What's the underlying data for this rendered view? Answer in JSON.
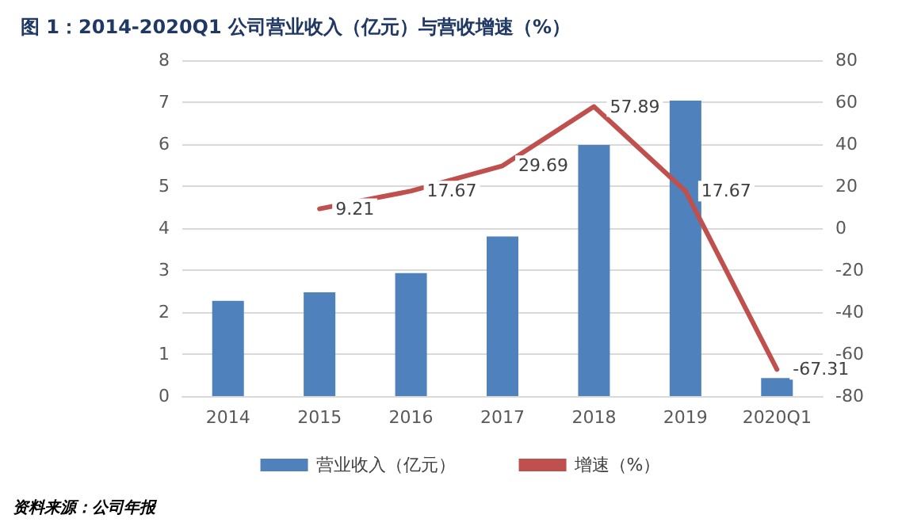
{
  "chart_data": {
    "type": "bar",
    "title": "图 1：2014-2020Q1 公司营业收入（亿元）与营收增速（%）",
    "categories": [
      "2014",
      "2015",
      "2016",
      "2017",
      "2018",
      "2019",
      "2020Q1"
    ],
    "series": [
      {
        "name": "营业收入（亿元）",
        "color": "#4f81bd",
        "values": [
          2.27,
          2.47,
          2.93,
          3.8,
          5.98,
          7.04,
          0.43
        ]
      },
      {
        "name": "增速（%）",
        "type": "line",
        "axis": "y2",
        "color": "#c0504d",
        "marker": "none",
        "values": [
          null,
          9.21,
          17.67,
          29.69,
          57.89,
          17.67,
          -67.31
        ],
        "value_labels": [
          null,
          "9.21",
          "17.67",
          "29.69",
          "57.89",
          "17.67",
          "-67.31"
        ]
      }
    ],
    "ylim": [
      0,
      8
    ],
    "yticks": [
      0,
      1,
      2,
      3,
      4,
      5,
      6,
      7,
      8
    ],
    "y2lim": [
      -80,
      80
    ],
    "y2ticks": [
      -80,
      -60,
      -40,
      -20,
      0,
      20,
      40,
      60,
      80
    ],
    "grid": "y",
    "legend": "bottom",
    "annotations": [
      "资料来源：公司年报"
    ]
  }
}
